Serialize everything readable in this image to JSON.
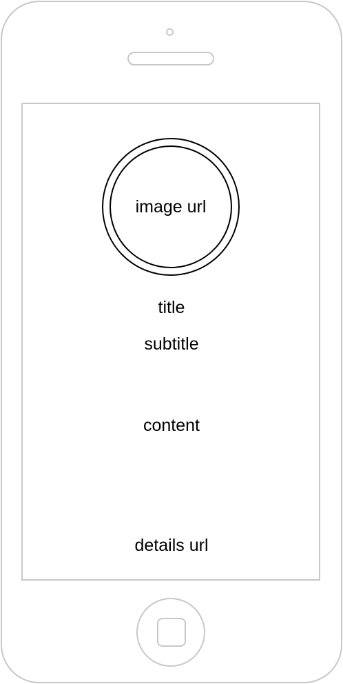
{
  "card": {
    "image_label": "image url",
    "title": "title",
    "subtitle": "subtitle",
    "content": "content",
    "details_link": "details url"
  },
  "device": {
    "type": "smartphone-outline",
    "outline_color": "#c8c8c8",
    "ink_color": "#000000"
  }
}
